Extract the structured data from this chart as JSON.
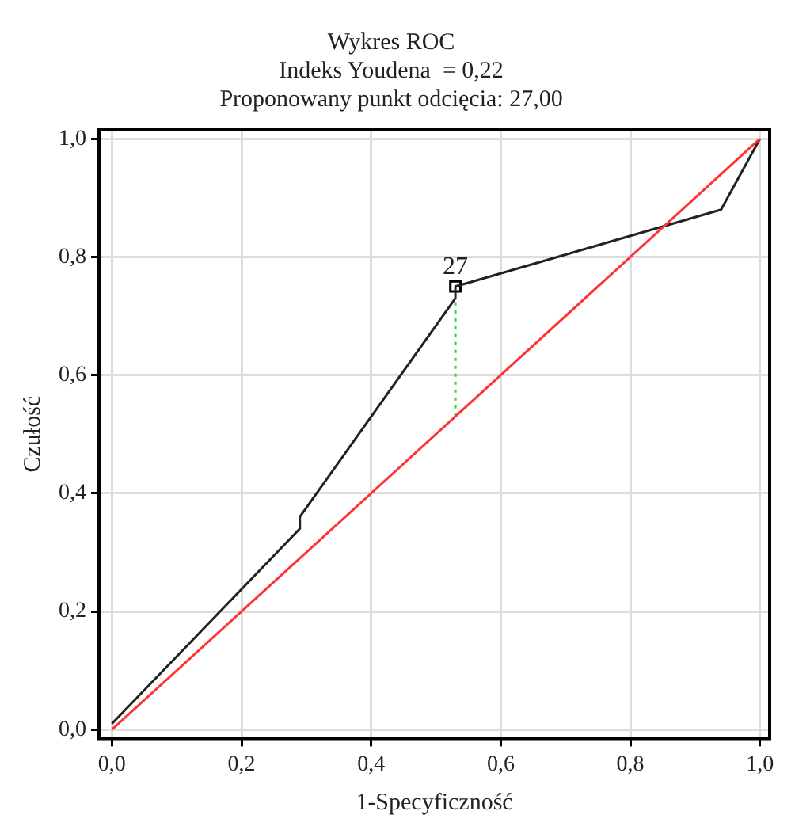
{
  "chart_data": {
    "type": "line",
    "title": "Wykres ROC",
    "subtitle": "Indeks Youdena  = 0,22\nProponowany punkt odcięcia: 27,00",
    "xlabel": "1-Specyficzność",
    "ylabel": "Czułość",
    "xlim": [
      -0.02,
      1.015
    ],
    "ylim": [
      -0.015,
      1.015
    ],
    "xticks": [
      {
        "value": 0,
        "label": "0,0"
      },
      {
        "value": 0.2,
        "label": "0,2"
      },
      {
        "value": 0.4,
        "label": "0,4"
      },
      {
        "value": 0.6,
        "label": "0,6"
      },
      {
        "value": 0.8,
        "label": "0,8"
      },
      {
        "value": 1,
        "label": "1,0"
      }
    ],
    "yticks": [
      {
        "value": 0,
        "label": "0,0"
      },
      {
        "value": 0.2,
        "label": "0,2"
      },
      {
        "value": 0.4,
        "label": "0,4"
      },
      {
        "value": 0.6,
        "label": "0,6"
      },
      {
        "value": 0.8,
        "label": "0,8"
      },
      {
        "value": 1,
        "label": "1,0"
      }
    ],
    "grid": true,
    "marker": "none",
    "line_style": "solid",
    "series": [
      {
        "color": "#ff3333",
        "x": [
          0,
          1
        ],
        "values": [
          0,
          1
        ]
      },
      {
        "color": "#22dd22",
        "line_style": "dotted",
        "x": [
          0.53,
          0.53
        ],
        "values": [
          0.53,
          0.73
        ]
      },
      {
        "color": "#222222",
        "x": [
          0,
          0.29,
          0.29,
          0.53,
          0.53,
          0.94,
          1
        ],
        "values": [
          0.01,
          0.34,
          0.36,
          0.73,
          0.75,
          0.88,
          1
        ]
      },
      {
        "type": "scatter",
        "color": "#000000",
        "marker": "square",
        "x": [
          0.53
        ],
        "values": [
          0.75
        ]
      }
    ],
    "annotations": [
      {
        "text": "27",
        "x": 0.53,
        "y": 0.75
      }
    ]
  }
}
